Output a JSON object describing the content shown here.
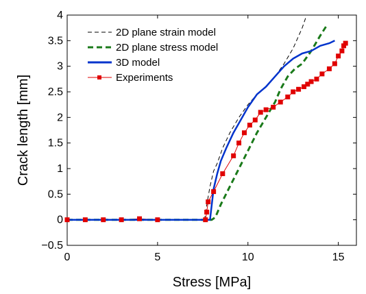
{
  "chart_data": {
    "type": "line",
    "xlabel": "Stress [MPa]",
    "ylabel": "Crack length [mm]",
    "xlim": [
      0,
      16
    ],
    "ylim": [
      -0.5,
      4
    ],
    "xticks": [
      0,
      5,
      10,
      15
    ],
    "yticks": [
      -0.5,
      0,
      0.5,
      1,
      1.5,
      2,
      2.5,
      3,
      3.5,
      4
    ],
    "xtick_labels": [
      "0",
      "5",
      "10",
      "15"
    ],
    "ytick_labels": [
      "−0.5",
      "0",
      "0.5",
      "1",
      "1.5",
      "2",
      "2.5",
      "3",
      "3.5",
      "4"
    ],
    "grid": false,
    "legend_position": "top-left",
    "series": [
      {
        "name": "2D plane strain model",
        "color": "#000000",
        "style": "dashed-thin",
        "x": [
          0,
          7.6,
          7.75,
          7.9,
          8.1,
          8.3,
          8.6,
          9.0,
          9.5,
          10.0,
          10.5,
          11.0,
          11.5,
          12.0,
          12.5,
          13.0,
          13.2
        ],
        "y": [
          0,
          0,
          0.35,
          0.65,
          0.95,
          1.1,
          1.4,
          1.7,
          2.0,
          2.25,
          2.45,
          2.6,
          2.8,
          3.05,
          3.35,
          3.75,
          3.95
        ]
      },
      {
        "name": "2D plane stress model",
        "color": "#1a7a1a",
        "style": "dashed-thick",
        "x": [
          0,
          8.0,
          8.2,
          8.5,
          9.0,
          9.5,
          10.0,
          10.5,
          11.0,
          11.5,
          11.8,
          12.2,
          12.6,
          13.0,
          13.5,
          14.0,
          14.4
        ],
        "y": [
          0,
          0,
          0.05,
          0.3,
          0.65,
          1.0,
          1.35,
          1.7,
          2.0,
          2.3,
          2.55,
          2.8,
          2.95,
          3.05,
          3.3,
          3.6,
          3.82
        ]
      },
      {
        "name": "3D model",
        "color": "#0033cc",
        "style": "solid-thick",
        "x": [
          0,
          7.9,
          8.0,
          8.1,
          8.3,
          8.5,
          8.8,
          9.2,
          9.6,
          10.0,
          10.5,
          11.0,
          11.5,
          12.0,
          12.5,
          13.0,
          13.5,
          14.0,
          14.5,
          14.8
        ],
        "y": [
          0,
          0,
          0.3,
          0.6,
          0.9,
          1.15,
          1.4,
          1.7,
          1.95,
          2.2,
          2.45,
          2.6,
          2.8,
          3.0,
          3.15,
          3.25,
          3.3,
          3.4,
          3.45,
          3.5
        ]
      },
      {
        "name": "Experiments",
        "color": "#e00000",
        "style": "line-square-markers",
        "x": [
          0,
          1,
          2,
          3,
          4,
          5,
          7.65,
          7.72,
          7.8,
          8.1,
          8.6,
          9.2,
          9.5,
          9.8,
          10.1,
          10.4,
          10.7,
          11.0,
          11.4,
          11.8,
          12.2,
          12.5,
          12.8,
          13.1,
          13.3,
          13.5,
          13.8,
          14.1,
          14.5,
          14.8,
          15.0,
          15.2,
          15.3,
          15.4
        ],
        "y": [
          0,
          0,
          0,
          0,
          0.02,
          0,
          0,
          0.15,
          0.35,
          0.55,
          0.9,
          1.25,
          1.5,
          1.7,
          1.85,
          1.95,
          2.1,
          2.15,
          2.2,
          2.3,
          2.4,
          2.5,
          2.55,
          2.6,
          2.65,
          2.7,
          2.75,
          2.85,
          2.95,
          3.05,
          3.2,
          3.3,
          3.4,
          3.45
        ]
      }
    ]
  }
}
